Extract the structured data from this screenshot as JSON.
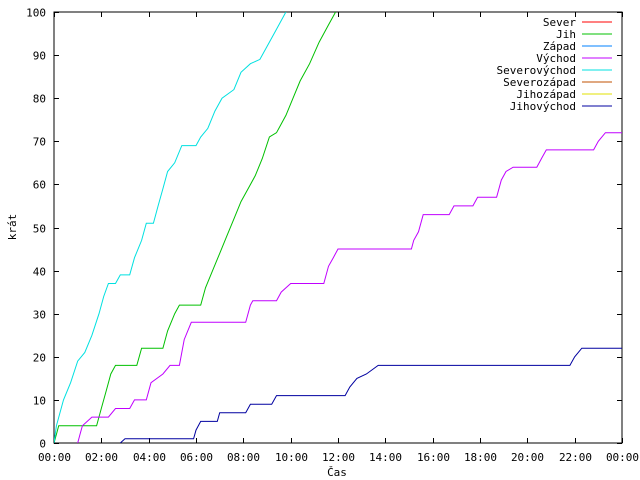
{
  "chart_data": {
    "type": "line",
    "title": "",
    "xlabel": "Čas",
    "ylabel": "krát",
    "xlim": [
      0,
      24
    ],
    "ylim": [
      0,
      100
    ],
    "grid": false,
    "legend_position": "top-right",
    "x_ticks": [
      "00:00",
      "02:00",
      "04:00",
      "06:00",
      "08:00",
      "10:00",
      "12:00",
      "14:00",
      "16:00",
      "18:00",
      "20:00",
      "22:00",
      "00:00"
    ],
    "y_ticks": [
      0,
      10,
      20,
      30,
      40,
      50,
      60,
      70,
      80,
      90,
      100
    ],
    "series": [
      {
        "name": "Sever",
        "color": "#ff0000",
        "points": []
      },
      {
        "name": "Jih",
        "color": "#00c000",
        "points": [
          [
            0.0,
            0
          ],
          [
            0.1,
            2
          ],
          [
            0.2,
            4
          ],
          [
            1.8,
            4
          ],
          [
            2.0,
            8
          ],
          [
            2.2,
            12
          ],
          [
            2.4,
            16
          ],
          [
            2.6,
            18
          ],
          [
            3.5,
            18
          ],
          [
            3.7,
            22
          ],
          [
            4.6,
            22
          ],
          [
            4.8,
            26
          ],
          [
            5.1,
            30
          ],
          [
            5.3,
            32
          ],
          [
            6.2,
            32
          ],
          [
            6.4,
            36
          ],
          [
            6.7,
            40
          ],
          [
            7.0,
            44
          ],
          [
            7.3,
            48
          ],
          [
            7.6,
            52
          ],
          [
            7.9,
            56
          ],
          [
            8.2,
            59
          ],
          [
            8.5,
            62
          ],
          [
            8.8,
            66
          ],
          [
            9.1,
            71
          ],
          [
            9.4,
            72
          ],
          [
            9.8,
            76
          ],
          [
            10.1,
            80
          ],
          [
            10.4,
            84
          ],
          [
            10.8,
            88
          ],
          [
            11.2,
            93
          ],
          [
            11.6,
            97
          ],
          [
            11.9,
            100
          ]
        ]
      },
      {
        "name": "Západ",
        "color": "#0080ff",
        "points": []
      },
      {
        "name": "Východ",
        "color": "#c000ff",
        "points": [
          [
            1.0,
            0
          ],
          [
            1.1,
            2
          ],
          [
            1.2,
            4
          ],
          [
            1.6,
            6
          ],
          [
            2.3,
            6
          ],
          [
            2.6,
            8
          ],
          [
            3.2,
            8
          ],
          [
            3.4,
            10
          ],
          [
            3.9,
            10
          ],
          [
            4.1,
            14
          ],
          [
            4.6,
            16
          ],
          [
            4.9,
            18
          ],
          [
            5.3,
            18
          ],
          [
            5.5,
            24
          ],
          [
            5.8,
            28
          ],
          [
            8.1,
            28
          ],
          [
            8.3,
            32
          ],
          [
            8.4,
            33
          ],
          [
            9.4,
            33
          ],
          [
            9.6,
            35
          ],
          [
            10.0,
            37
          ],
          [
            11.4,
            37
          ],
          [
            11.6,
            41
          ],
          [
            11.8,
            43
          ],
          [
            12.0,
            45
          ],
          [
            15.1,
            45
          ],
          [
            15.2,
            47
          ],
          [
            15.4,
            49
          ],
          [
            15.6,
            53
          ],
          [
            16.7,
            53
          ],
          [
            16.9,
            55
          ],
          [
            17.7,
            55
          ],
          [
            17.9,
            57
          ],
          [
            18.7,
            57
          ],
          [
            18.9,
            61
          ],
          [
            19.1,
            63
          ],
          [
            19.4,
            64
          ],
          [
            20.4,
            64
          ],
          [
            20.6,
            66
          ],
          [
            20.8,
            68
          ],
          [
            22.8,
            68
          ],
          [
            23.0,
            70
          ],
          [
            23.3,
            72
          ],
          [
            24.0,
            72
          ]
        ]
      },
      {
        "name": "Severovýchod",
        "color": "#00e0e0",
        "points": [
          [
            0.0,
            0
          ],
          [
            0.1,
            4
          ],
          [
            0.4,
            10
          ],
          [
            0.7,
            14
          ],
          [
            1.0,
            19
          ],
          [
            1.3,
            21
          ],
          [
            1.6,
            25
          ],
          [
            1.9,
            30
          ],
          [
            2.1,
            34
          ],
          [
            2.3,
            37
          ],
          [
            2.6,
            37
          ],
          [
            2.8,
            39
          ],
          [
            3.2,
            39
          ],
          [
            3.4,
            43
          ],
          [
            3.7,
            47
          ],
          [
            3.9,
            51
          ],
          [
            4.2,
            51
          ],
          [
            4.4,
            55
          ],
          [
            4.6,
            59
          ],
          [
            4.8,
            63
          ],
          [
            5.1,
            65
          ],
          [
            5.4,
            69
          ],
          [
            6.0,
            69
          ],
          [
            6.2,
            71
          ],
          [
            6.5,
            73
          ],
          [
            6.8,
            77
          ],
          [
            7.1,
            80
          ],
          [
            7.6,
            82
          ],
          [
            7.9,
            86
          ],
          [
            8.3,
            88
          ],
          [
            8.7,
            89
          ],
          [
            9.0,
            92
          ],
          [
            9.3,
            95
          ],
          [
            9.7,
            99
          ],
          [
            9.8,
            100
          ]
        ]
      },
      {
        "name": "Severozápad",
        "color": "#c05000",
        "points": []
      },
      {
        "name": "Jihozápad",
        "color": "#e0e000",
        "points": []
      },
      {
        "name": "Jihovýchod",
        "color": "#0000a0",
        "points": [
          [
            2.8,
            0
          ],
          [
            3.0,
            1
          ],
          [
            5.9,
            1
          ],
          [
            6.0,
            3
          ],
          [
            6.2,
            5
          ],
          [
            6.9,
            5
          ],
          [
            7.0,
            7
          ],
          [
            8.1,
            7
          ],
          [
            8.3,
            9
          ],
          [
            9.2,
            9
          ],
          [
            9.4,
            11
          ],
          [
            12.3,
            11
          ],
          [
            12.5,
            13
          ],
          [
            12.8,
            15
          ],
          [
            13.2,
            16
          ],
          [
            13.7,
            18
          ],
          [
            21.8,
            18
          ],
          [
            22.0,
            20
          ],
          [
            22.3,
            22
          ],
          [
            24.0,
            22
          ]
        ]
      }
    ]
  }
}
